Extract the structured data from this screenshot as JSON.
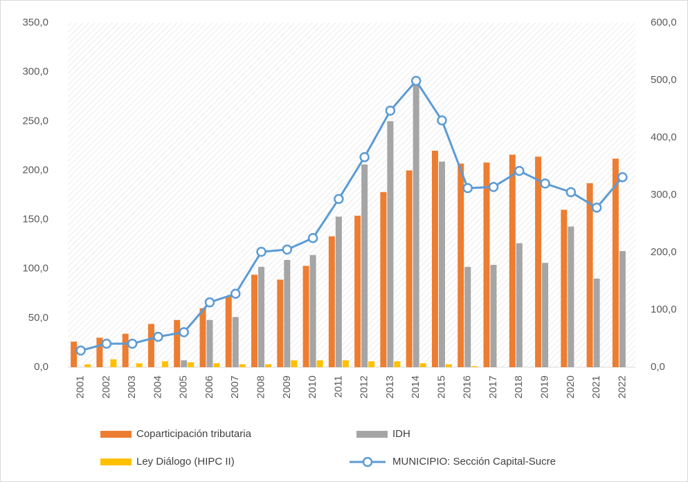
{
  "chart_data": {
    "type": "bar",
    "categories": [
      "2001",
      "2002",
      "2003",
      "2004",
      "2005",
      "2006",
      "2007",
      "2008",
      "2009",
      "2010",
      "2011",
      "2012",
      "2013",
      "2014",
      "2015",
      "2016",
      "2017",
      "2018",
      "2019",
      "2020",
      "2021",
      "2022"
    ],
    "series": [
      {
        "name": "Coparticipación tributaria",
        "color": "#ed7d31",
        "type": "bar",
        "values": [
          26,
          30,
          34,
          44,
          48,
          60,
          72,
          94,
          89,
          103,
          133,
          154,
          178,
          200,
          220,
          207,
          208,
          216,
          214,
          160,
          187,
          212
        ]
      },
      {
        "name": "IDH",
        "color": "#a5a5a5",
        "type": "bar",
        "values": [
          0,
          0,
          0,
          0,
          7,
          48,
          51,
          102,
          109,
          114,
          153,
          206,
          250,
          290,
          209,
          102,
          104,
          126,
          106,
          143,
          90,
          118
        ]
      },
      {
        "name": "Ley Diálogo (HIPC II)",
        "color": "#ffc000",
        "type": "bar",
        "values": [
          3,
          8,
          4,
          6,
          5,
          4,
          3,
          3,
          7,
          7,
          7,
          6,
          6,
          4,
          3,
          1,
          0,
          0,
          0,
          0,
          0,
          0
        ]
      },
      {
        "name": "MUNICIPIO: Sección Capital-Sucre",
        "color": "#5b9bd5",
        "type": "line",
        "axis": "y2",
        "values": [
          29,
          41,
          41,
          53,
          61,
          113,
          128,
          201,
          205,
          225,
          293,
          366,
          447,
          499,
          430,
          312,
          314,
          342,
          320,
          305,
          278,
          331
        ]
      }
    ],
    "ylim": [
      0,
      350
    ],
    "yticks": [
      {
        "value": 0,
        "label": "0,0"
      },
      {
        "value": 50,
        "label": "50,0"
      },
      {
        "value": 100,
        "label": "100,0"
      },
      {
        "value": 150,
        "label": "150,0"
      },
      {
        "value": 200,
        "label": "200,0"
      },
      {
        "value": 250,
        "label": "250,0"
      },
      {
        "value": 300,
        "label": "300,0"
      },
      {
        "value": 350,
        "label": "350,0"
      }
    ],
    "y2lim": [
      0,
      600
    ],
    "y2ticks": [
      {
        "value": 0,
        "label": "0,0"
      },
      {
        "value": 100,
        "label": "100,0"
      },
      {
        "value": 200,
        "label": "200,0"
      },
      {
        "value": 300,
        "label": "300,0"
      },
      {
        "value": 400,
        "label": "400,0"
      },
      {
        "value": 500,
        "label": "500,0"
      },
      {
        "value": 600,
        "label": "600,0"
      }
    ],
    "legend": "bottom"
  }
}
